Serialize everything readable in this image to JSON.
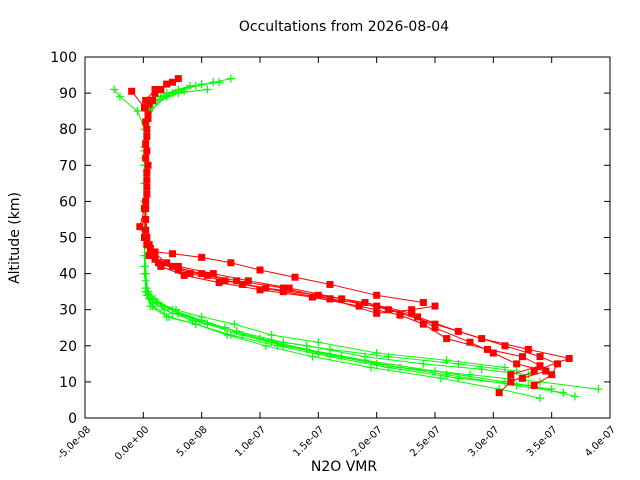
{
  "chart_data": {
    "type": "line",
    "title": "Occultations from 2026-08-04",
    "xlabel": "N2O VMR",
    "ylabel": "Altitude (km)",
    "xlim": [
      -5e-08,
      4e-07
    ],
    "ylim": [
      0,
      100
    ],
    "x_ticks": [
      -5e-08,
      0,
      5e-08,
      1e-07,
      1.5e-07,
      2e-07,
      2.5e-07,
      3e-07,
      3.5e-07,
      4e-07
    ],
    "x_tick_labels": [
      "-5.0e-08",
      "0.0e+00",
      "5.0e-08",
      "1.0e-07",
      "1.5e-07",
      "2.0e-07",
      "2.5e-07",
      "3.0e-07",
      "3.5e-07",
      "4.0e-07"
    ],
    "y_ticks": [
      0,
      10,
      20,
      30,
      40,
      50,
      60,
      70,
      80,
      90,
      100
    ],
    "y_tick_labels": [
      "0",
      "10",
      "20",
      "30",
      "40",
      "50",
      "60",
      "70",
      "80",
      "90",
      "100"
    ],
    "grid": false,
    "legend": "none",
    "series": [
      {
        "color": "#00ff00",
        "marker": "plus",
        "profiles": [
          [
            [
              3.6e-07,
              7
            ],
            [
              3.2e-07,
              9
            ],
            [
              2.6e-07,
              12
            ],
            [
              2e-07,
              15
            ],
            [
              1.5e-07,
              18
            ],
            [
              1.1e-07,
              21
            ],
            [
              8e-08,
              24
            ],
            [
              5e-08,
              27
            ],
            [
              2.5e-08,
              30
            ],
            [
              1e-08,
              33
            ],
            [
              3e-09,
              36
            ],
            [
              2e-09,
              40
            ],
            [
              1e-09,
              45
            ],
            [
              1e-09,
              50
            ],
            [
              1e-09,
              55
            ],
            [
              1e-09,
              60
            ],
            [
              1e-09,
              65
            ],
            [
              1e-09,
              70
            ],
            [
              1e-09,
              75
            ],
            [
              2e-09,
              80
            ],
            [
              3e-09,
              85
            ],
            [
              1e-08,
              88
            ],
            [
              3e-08,
              91
            ],
            [
              6e-08,
              93
            ],
            [
              7.5e-08,
              94
            ]
          ],
          [
            [
              3.9e-07,
              8
            ],
            [
              3.4e-07,
              10
            ],
            [
              2.8e-07,
              12
            ],
            [
              2.2e-07,
              14
            ],
            [
              1.7e-07,
              17
            ],
            [
              1.2e-07,
              20
            ],
            [
              8.5e-08,
              23
            ],
            [
              5.5e-08,
              26
            ],
            [
              3e-08,
              29
            ],
            [
              1.2e-08,
              32
            ],
            [
              4e-09,
              35
            ],
            [
              2e-09,
              40
            ],
            [
              1e-09,
              50
            ],
            [
              1e-09,
              60
            ],
            [
              1e-09,
              70
            ],
            [
              1e-09,
              80
            ],
            [
              -5e-09,
              85
            ],
            [
              -2e-08,
              89
            ],
            [
              -2.5e-08,
              91
            ]
          ],
          [
            [
              3.7e-07,
              6
            ],
            [
              3.3e-07,
              9
            ],
            [
              2.7e-07,
              11
            ],
            [
              2.1e-07,
              14
            ],
            [
              1.6e-07,
              17
            ],
            [
              1.15e-07,
              20
            ],
            [
              7.5e-08,
              23
            ],
            [
              4.5e-08,
              26
            ],
            [
              2e-08,
              28
            ],
            [
              6e-09,
              31
            ],
            [
              2e-09,
              35
            ],
            [
              1e-09,
              45
            ],
            [
              1e-09,
              60
            ],
            [
              1e-09,
              75
            ],
            [
              2e-09,
              85
            ],
            [
              5e-09,
              88
            ],
            [
              2e-08,
              90
            ],
            [
              4e-08,
              92
            ]
          ],
          [
            [
              3.5e-07,
              8
            ],
            [
              3.1e-07,
              10
            ],
            [
              2.5e-07,
              13
            ],
            [
              1.9e-07,
              16
            ],
            [
              1.4e-07,
              19
            ],
            [
              1e-07,
              22
            ],
            [
              7e-08,
              25
            ],
            [
              4.2e-08,
              27
            ],
            [
              1.8e-08,
              30
            ],
            [
              5e-09,
              33
            ],
            [
              2e-09,
              38
            ],
            [
              1e-09,
              50
            ],
            [
              1e-09,
              65
            ],
            [
              2e-09,
              80
            ],
            [
              8e-09,
              87
            ],
            [
              3e-08,
              90
            ],
            [
              5.5e-08,
              91
            ]
          ],
          [
            [
              3.4e-07,
              5.5
            ],
            [
              3.05e-07,
              8
            ],
            [
              2.55e-07,
              11
            ],
            [
              1.95e-07,
              14
            ],
            [
              1.45e-07,
              17
            ],
            [
              1.05e-07,
              20
            ],
            [
              7.2e-08,
              23
            ],
            [
              4.5e-08,
              26
            ],
            [
              2.2e-08,
              28
            ],
            [
              8e-09,
              31
            ],
            [
              3e-09,
              34
            ],
            [
              1e-09,
              40
            ],
            [
              1e-09,
              55
            ],
            [
              1e-09,
              70
            ],
            [
              2e-09,
              82
            ],
            [
              1.5e-08,
              89
            ],
            [
              4.5e-08,
              92
            ],
            [
              6.5e-08,
              93
            ]
          ],
          [
            [
              3.3e-07,
              12
            ],
            [
              2.9e-07,
              13.5
            ],
            [
              2.4e-07,
              15
            ],
            [
              1.9e-07,
              17
            ],
            [
              1.4e-07,
              20
            ],
            [
              1e-07,
              22
            ],
            [
              7e-08,
              25
            ],
            [
              4e-08,
              28
            ],
            [
              1.6e-08,
              31
            ],
            [
              4e-09,
              34
            ],
            [
              1e-09,
              40
            ],
            [
              1e-09,
              55
            ],
            [
              1e-09,
              72
            ],
            [
              5e-09,
              85
            ],
            [
              2e-08,
              89
            ],
            [
              3.5e-08,
              90.5
            ]
          ],
          [
            [
              3.2e-07,
              13
            ],
            [
              2.7e-07,
              15
            ],
            [
              2.1e-07,
              17
            ],
            [
              1.6e-07,
              19
            ],
            [
              1.2e-07,
              21
            ],
            [
              8e-08,
              24
            ],
            [
              5e-08,
              27
            ],
            [
              2.5e-08,
              29
            ],
            [
              8e-09,
              32
            ],
            [
              2e-09,
              36
            ],
            [
              1e-09,
              45
            ],
            [
              1e-09,
              60
            ],
            [
              1e-09,
              75
            ],
            [
              3e-09,
              85
            ],
            [
              1e-08,
              88
            ]
          ],
          [
            [
              3.1e-07,
              14
            ],
            [
              2.6e-07,
              16
            ],
            [
              2e-07,
              18
            ],
            [
              1.5e-07,
              21
            ],
            [
              1.1e-07,
              23
            ],
            [
              7.8e-08,
              26
            ],
            [
              5e-08,
              28
            ],
            [
              2.8e-08,
              30
            ],
            [
              1.2e-08,
              32
            ],
            [
              3e-09,
              35
            ],
            [
              1e-09,
              42
            ],
            [
              1e-09,
              58
            ],
            [
              1e-09,
              74
            ],
            [
              4e-09,
              86
            ],
            [
              2.5e-08,
              90
            ],
            [
              5e-08,
              92.5
            ]
          ]
        ]
      },
      {
        "color": "#ff0000",
        "marker": "square",
        "profiles": [
          [
            [
              3.05e-07,
              7
            ],
            [
              3.15e-07,
              10
            ],
            [
              3.35e-07,
              13
            ],
            [
              3.65e-07,
              16.5
            ],
            [
              3.3e-07,
              19
            ],
            [
              2.9e-07,
              22
            ],
            [
              2.5e-07,
              26
            ],
            [
              2.1e-07,
              30
            ],
            [
              1.7e-07,
              33
            ],
            [
              1.25e-07,
              36
            ],
            [
              9e-08,
              38
            ],
            [
              6e-08,
              40
            ],
            [
              3e-08,
              42
            ],
            [
              1e-08,
              44
            ],
            [
              5e-09,
              48
            ],
            [
              2e-09,
              55
            ],
            [
              3e-09,
              62
            ],
            [
              4e-09,
              70
            ],
            [
              3e-09,
              78
            ],
            [
              4e-09,
              84
            ],
            [
              2e-09,
              88
            ],
            [
              1e-08,
              91
            ],
            [
              2.5e-08,
              93
            ],
            [
              3e-08,
              94
            ]
          ],
          [
            [
              3.35e-07,
              9
            ],
            [
              3.5e-07,
              12
            ],
            [
              3.55e-07,
              15
            ],
            [
              3.4e-07,
              17
            ],
            [
              3.1e-07,
              20
            ],
            [
              2.7e-07,
              24
            ],
            [
              2.35e-07,
              28
            ],
            [
              2e-07,
              31
            ],
            [
              1.6e-07,
              33
            ],
            [
              1.2e-07,
              35
            ],
            [
              8.5e-08,
              37
            ],
            [
              5.5e-08,
              39.5
            ],
            [
              3e-08,
              41
            ],
            [
              1.3e-08,
              43
            ],
            [
              6e-09,
              47
            ],
            [
              -3e-09,
              53
            ],
            [
              1e-09,
              58
            ],
            [
              3e-09,
              64
            ],
            [
              2e-09,
              72
            ],
            [
              3e-09,
              80
            ],
            [
              1e-09,
              86
            ],
            [
              -1e-08,
              90.5
            ]
          ],
          [
            [
              3.25e-07,
              11
            ],
            [
              3.45e-07,
              13
            ],
            [
              3.2e-07,
              15
            ],
            [
              3e-07,
              18
            ],
            [
              2.8e-07,
              21
            ],
            [
              2.5e-07,
              25
            ],
            [
              2.3e-07,
              29
            ],
            [
              1.9e-07,
              32
            ],
            [
              1.5e-07,
              34
            ],
            [
              1.05e-07,
              36
            ],
            [
              7e-08,
              38
            ],
            [
              4e-08,
              40
            ],
            [
              2e-08,
              43
            ],
            [
              8e-09,
              46
            ],
            [
              2e-09,
              52
            ],
            [
              2e-09,
              60
            ],
            [
              3e-09,
              68
            ],
            [
              2e-09,
              76
            ],
            [
              4e-09,
              83
            ],
            [
              8e-09,
              88
            ],
            [
              1.5e-08,
              91
            ],
            [
              2e-08,
              92.5
            ]
          ],
          [
            [
              3.15e-07,
              12
            ],
            [
              3.4e-07,
              14.5
            ],
            [
              3.25e-07,
              17
            ],
            [
              2.95e-07,
              19
            ],
            [
              2.6e-07,
              22
            ],
            [
              2.4e-07,
              26
            ],
            [
              2.2e-07,
              28.5
            ],
            [
              1.85e-07,
              31
            ],
            [
              1.45e-07,
              33.5
            ],
            [
              1e-07,
              35.5
            ],
            [
              6.5e-08,
              37.5
            ],
            [
              3.5e-08,
              39.5
            ],
            [
              1.5e-08,
              42
            ],
            [
              5e-09,
              45
            ],
            [
              1e-09,
              50
            ],
            [
              2e-09,
              58
            ],
            [
              3e-09,
              66
            ],
            [
              3e-09,
              74
            ],
            [
              2e-09,
              82
            ],
            [
              5e-09,
              87
            ],
            [
              1e-08,
              90
            ]
          ],
          [
            [
              2.5e-07,
              31
            ],
            [
              2.3e-07,
              30
            ],
            [
              2e-07,
              29
            ],
            [
              1.6e-07,
              33
            ],
            [
              1.2e-07,
              36
            ],
            [
              8e-08,
              38
            ],
            [
              5e-08,
              40
            ],
            [
              2.5e-08,
              42
            ],
            [
              1e-08,
              44
            ],
            [
              3e-09,
              48
            ]
          ],
          [
            [
              2.4e-07,
              32
            ],
            [
              2e-07,
              34
            ],
            [
              1.6e-07,
              37
            ],
            [
              1.3e-07,
              39
            ],
            [
              1e-07,
              41
            ],
            [
              7.5e-08,
              43
            ],
            [
              5e-08,
              44.5
            ],
            [
              2.5e-08,
              45.5
            ],
            [
              1e-08,
              46
            ],
            [
              3e-09,
              50
            ]
          ]
        ]
      }
    ]
  }
}
